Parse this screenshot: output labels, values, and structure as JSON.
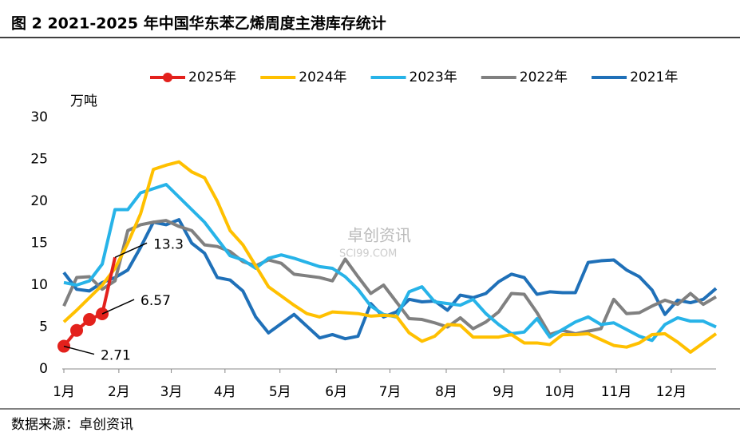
{
  "chart_data": {
    "type": "line",
    "title": "图 2 2021-2025 年中国华东苯乙烯周度主港库存统计",
    "y_label": "万吨",
    "source": "数据来源：卓创资讯",
    "watermark": [
      "卓创资讯",
      "SCI99.COM"
    ],
    "x": [
      1,
      2,
      3,
      4,
      5,
      6,
      7,
      8,
      9,
      10,
      11,
      12,
      13,
      14,
      15,
      16,
      17,
      18,
      19,
      20,
      21,
      22,
      23,
      24,
      25,
      26,
      27,
      28,
      29,
      30,
      31,
      32,
      33,
      34,
      35,
      36,
      37,
      38,
      39,
      40,
      41,
      42,
      43,
      44,
      45,
      46,
      47,
      48,
      49,
      50,
      51,
      52
    ],
    "xlim": [
      1,
      52
    ],
    "xticks": [
      {
        "value": 1,
        "label": "1月"
      },
      {
        "value": 5.3,
        "label": "2月"
      },
      {
        "value": 9.4,
        "label": "3月"
      },
      {
        "value": 13.6,
        "label": "4月"
      },
      {
        "value": 17.9,
        "label": "5月"
      },
      {
        "value": 22.3,
        "label": "6月"
      },
      {
        "value": 26.5,
        "label": "7月"
      },
      {
        "value": 30.9,
        "label": "8月"
      },
      {
        "value": 35.4,
        "label": "9月"
      },
      {
        "value": 39.8,
        "label": "10月"
      },
      {
        "value": 44.2,
        "label": "11月"
      },
      {
        "value": 48.5,
        "label": "12月"
      }
    ],
    "ylim": [
      0,
      30
    ],
    "yticks": [
      0,
      5,
      10,
      15,
      20,
      25,
      30
    ],
    "grid": false,
    "legend": "top",
    "series": [
      {
        "name": "2025年",
        "color": "#e3211c",
        "markers": true,
        "labeled": [
          0,
          3,
          4
        ],
        "values": [
          2.71,
          4.6,
          5.9,
          6.57,
          13.3,
          null,
          null,
          null,
          null,
          null,
          null,
          null,
          null,
          null,
          null,
          null,
          null,
          null,
          null,
          null,
          null,
          null,
          null,
          null,
          null,
          null,
          null,
          null,
          null,
          null,
          null,
          null,
          null,
          null,
          null,
          null,
          null,
          null,
          null,
          null,
          null,
          null,
          null,
          null,
          null,
          null,
          null,
          null,
          null,
          null,
          null,
          null
        ]
      },
      {
        "name": "2024年",
        "color": "#ffc000",
        "values": [
          5.6,
          7.0,
          8.5,
          10.0,
          12.0,
          15.0,
          18.5,
          23.8,
          24.3,
          24.7,
          23.5,
          22.8,
          20.0,
          16.5,
          14.8,
          12.3,
          9.8,
          8.7,
          7.6,
          6.6,
          6.2,
          6.8,
          6.7,
          6.6,
          6.3,
          6.4,
          6.3,
          4.3,
          3.3,
          3.9,
          5.3,
          5.2,
          3.8,
          3.8,
          3.8,
          4.1,
          3.1,
          3.1,
          2.9,
          4.1,
          4.1,
          4.2,
          3.5,
          2.8,
          2.6,
          3.1,
          4.1,
          4.2,
          3.2,
          2.0,
          3.1,
          4.2
        ]
      },
      {
        "name": "2023年",
        "color": "#27b3e8",
        "values": [
          10.3,
          10.0,
          10.5,
          12.5,
          19.0,
          19.0,
          21.0,
          21.5,
          22.0,
          20.5,
          19.0,
          17.5,
          15.5,
          13.5,
          13.0,
          12.0,
          13.2,
          13.6,
          13.2,
          12.7,
          12.2,
          12.0,
          11.0,
          9.5,
          7.5,
          6.5,
          6.2,
          9.2,
          9.8,
          8.0,
          7.8,
          7.6,
          8.3,
          6.6,
          5.3,
          4.2,
          4.4,
          6.0,
          3.8,
          4.7,
          5.6,
          6.2,
          5.3,
          5.5,
          4.7,
          3.9,
          3.4,
          5.3,
          6.1,
          5.7,
          5.7,
          5.0
        ]
      },
      {
        "name": "2022年",
        "color": "#808080",
        "values": [
          7.5,
          10.9,
          11.0,
          9.5,
          10.5,
          16.5,
          17.2,
          17.5,
          17.7,
          17.0,
          16.5,
          14.8,
          14.6,
          14.0,
          12.8,
          12.3,
          13.0,
          12.6,
          11.3,
          11.1,
          10.9,
          10.5,
          13.1,
          11.0,
          9.0,
          10.0,
          8.0,
          6.0,
          5.9,
          5.5,
          5.0,
          6.1,
          4.8,
          5.6,
          6.8,
          9.0,
          8.9,
          6.7,
          4.1,
          4.6,
          4.2,
          4.5,
          4.8,
          8.3,
          6.6,
          6.7,
          7.5,
          8.2,
          7.7,
          9.0,
          7.7,
          8.6
        ]
      },
      {
        "name": "2021年",
        "color": "#1f70b8",
        "values": [
          11.5,
          9.5,
          9.3,
          10.3,
          10.9,
          11.8,
          14.5,
          17.5,
          17.2,
          17.8,
          15.0,
          13.8,
          10.9,
          10.6,
          9.3,
          6.2,
          4.3,
          5.4,
          6.5,
          5.1,
          3.7,
          4.1,
          3.6,
          3.9,
          7.8,
          6.2,
          6.8,
          8.3,
          8.0,
          8.1,
          7.0,
          8.8,
          8.5,
          9.0,
          10.4,
          11.3,
          10.9,
          8.9,
          9.2,
          9.1,
          9.1,
          12.7,
          12.9,
          13.0,
          11.8,
          11.0,
          9.4,
          6.5,
          8.2,
          7.9,
          8.3,
          9.6
        ]
      }
    ]
  }
}
